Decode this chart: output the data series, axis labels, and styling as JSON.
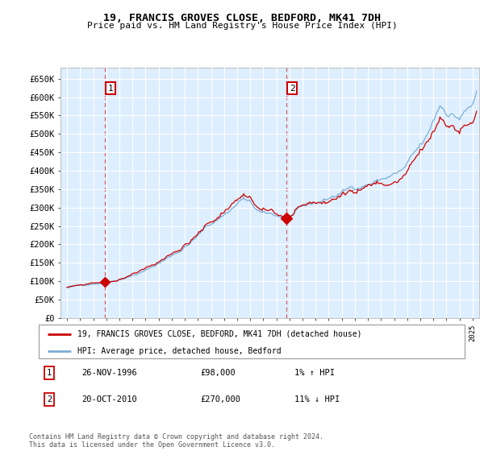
{
  "title": "19, FRANCIS GROVES CLOSE, BEDFORD, MK41 7DH",
  "subtitle": "Price paid vs. HM Land Registry's House Price Index (HPI)",
  "legend_line1": "19, FRANCIS GROVES CLOSE, BEDFORD, MK41 7DH (detached house)",
  "legend_line2": "HPI: Average price, detached house, Bedford",
  "transactions": [
    {
      "id": 1,
      "date": 1996.9,
      "price": 98000,
      "label": "26-NOV-1996",
      "price_str": "£98,000",
      "hpi_str": "1% ↑ HPI"
    },
    {
      "id": 2,
      "date": 2010.79,
      "price": 270000,
      "label": "20-OCT-2010",
      "price_str": "£270,000",
      "hpi_str": "11% ↓ HPI"
    }
  ],
  "footnote": "Contains HM Land Registry data © Crown copyright and database right 2024.\nThis data is licensed under the Open Government Licence v3.0.",
  "ylim": [
    0,
    680000
  ],
  "yticks": [
    0,
    50000,
    100000,
    150000,
    200000,
    250000,
    300000,
    350000,
    400000,
    450000,
    500000,
    550000,
    600000,
    650000
  ],
  "xlim": [
    1993.5,
    2025.5
  ],
  "red_color": "#cc0000",
  "blue_color": "#7aaed6",
  "background_color": "#ddeeff",
  "t1_x": 1996.9,
  "t2_x": 2010.79
}
